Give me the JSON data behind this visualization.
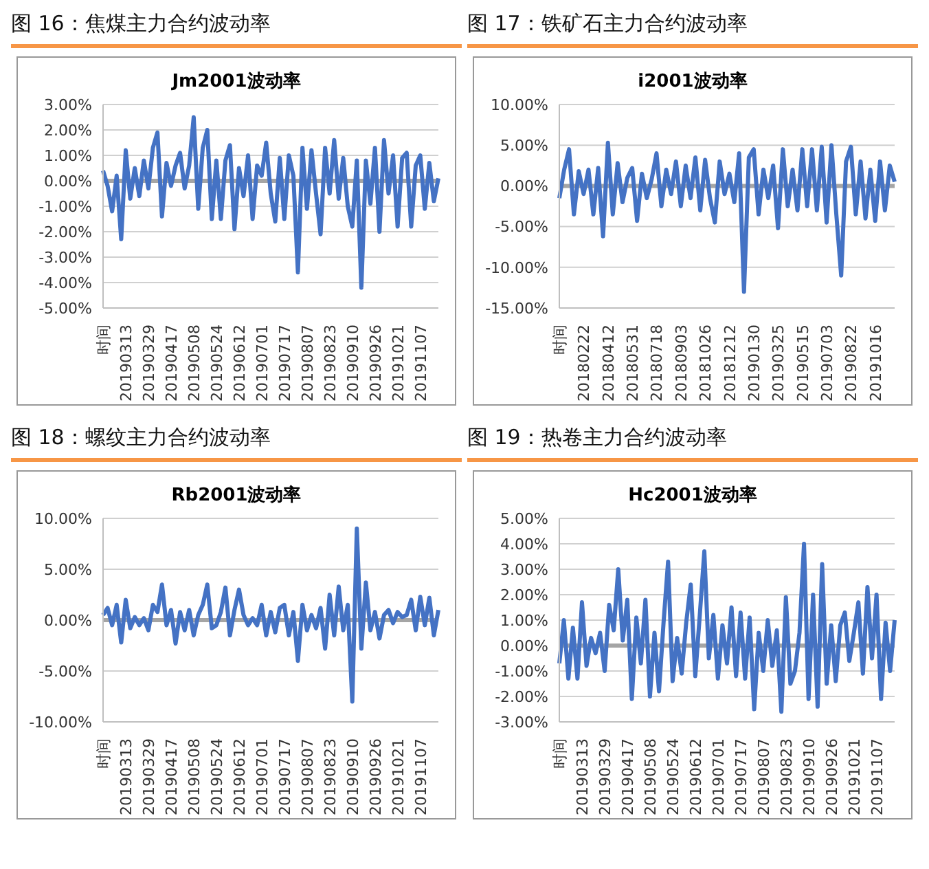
{
  "chart_data": [
    {
      "type": "line",
      "title": "图 16：焦煤主力合约波动率",
      "subtitle": "Jm2001波动率",
      "categories": [
        "时间",
        null,
        null,
        null,
        null,
        "20190313",
        null,
        null,
        null,
        null,
        "20190329",
        null,
        null,
        null,
        null,
        "20190417",
        null,
        null,
        null,
        null,
        "20190508",
        null,
        null,
        null,
        null,
        "20190524",
        null,
        null,
        null,
        null,
        "20190612",
        null,
        null,
        null,
        null,
        "20190701",
        null,
        null,
        null,
        null,
        "20190717",
        null,
        null,
        null,
        null,
        "20190807",
        null,
        null,
        null,
        null,
        "20190823",
        null,
        null,
        null,
        null,
        "20190910",
        null,
        null,
        null,
        null,
        "20190926",
        null,
        null,
        null,
        null,
        "20191021",
        null,
        null,
        null,
        null,
        "20191107",
        null,
        null,
        null,
        null
      ],
      "series": [
        {
          "color": "#4472c4",
          "values": [
            0.4,
            -0.2,
            -1.2,
            0.2,
            -2.3,
            1.2,
            -0.7,
            0.5,
            -0.6,
            0.8,
            -0.3,
            1.3,
            1.9,
            -1.4,
            0.7,
            -0.2,
            0.6,
            1.1,
            -0.3,
            0.6,
            2.5,
            -1.1,
            1.3,
            2.0,
            -1.5,
            0.8,
            -1.5,
            0.8,
            1.4,
            -1.9,
            0.5,
            -0.6,
            1.0,
            -1.5,
            0.6,
            0.2,
            1.5,
            -0.5,
            -1.6,
            0.9,
            -1.5,
            1.0,
            0.2,
            -3.6,
            1.3,
            -1.1,
            1.2,
            -0.5,
            -2.1,
            1.3,
            -0.5,
            1.6,
            -0.7,
            0.9,
            -1.0,
            -1.8,
            0.8,
            -4.2,
            0.8,
            -0.9,
            1.3,
            -2.0,
            1.6,
            -0.5,
            1.0,
            -1.8,
            0.9,
            1.1,
            -1.8,
            0.6,
            1.0,
            -1.1,
            0.7,
            -0.8,
            0.1
          ]
        }
      ],
      "ylim": [
        -5,
        3
      ],
      "yticks": [
        {
          "value": -5,
          "label": "-5.00%"
        },
        {
          "value": -4,
          "label": "-4.00%"
        },
        {
          "value": -3,
          "label": "-3.00%"
        },
        {
          "value": -2,
          "label": "-2.00%"
        },
        {
          "value": -1,
          "label": "-1.00%"
        },
        {
          "value": 0,
          "label": "0.00%"
        },
        {
          "value": 1,
          "label": "1.00%"
        },
        {
          "value": 2,
          "label": "2.00%"
        },
        {
          "value": 3,
          "label": "3.00%"
        }
      ],
      "ref_lines": [
        {
          "axis": "y",
          "value": 0,
          "color": "#a5a5a5"
        }
      ],
      "grid": "y",
      "marker": "none",
      "legend": false
    },
    {
      "type": "line",
      "title": "图 17：铁矿石主力合约波动率",
      "subtitle": "i2001波动率",
      "categories": [
        "时间",
        null,
        null,
        null,
        null,
        "20180222",
        null,
        null,
        null,
        null,
        "20180412",
        null,
        null,
        null,
        null,
        "20180531",
        null,
        null,
        null,
        null,
        "20180718",
        null,
        null,
        null,
        null,
        "20180903",
        null,
        null,
        null,
        null,
        "20181026",
        null,
        null,
        null,
        null,
        "20181212",
        null,
        null,
        null,
        null,
        "20190130",
        null,
        null,
        null,
        null,
        "20190325",
        null,
        null,
        null,
        null,
        "20190515",
        null,
        null,
        null,
        null,
        "20190703",
        null,
        null,
        null,
        null,
        "20190822",
        null,
        null,
        null,
        null,
        "20191016",
        null,
        null,
        null,
        null
      ],
      "series": [
        {
          "color": "#4472c4",
          "values": [
            -1.5,
            2.0,
            4.5,
            -3.5,
            1.8,
            -1.0,
            2.0,
            -3.5,
            2.2,
            -6.2,
            5.3,
            -3.5,
            2.8,
            -2.0,
            1.0,
            2.2,
            -4.3,
            1.5,
            -1.5,
            0.8,
            4.0,
            -2.5,
            2.0,
            -1.0,
            3.0,
            -2.5,
            2.5,
            -1.5,
            3.5,
            -3.0,
            3.2,
            -1.5,
            -4.5,
            3.0,
            -1.0,
            1.5,
            -2.0,
            4.0,
            -13.0,
            3.5,
            4.5,
            -3.5,
            2.0,
            -1.5,
            2.5,
            -5.2,
            4.5,
            -2.5,
            2.0,
            -3.0,
            4.5,
            -2.5,
            4.5,
            -3.0,
            4.8,
            -4.5,
            5.0,
            -3.5,
            -11.0,
            3.0,
            4.8,
            -3.5,
            3.0,
            -4.0,
            2.0,
            -4.3,
            3.0,
            -3.0,
            2.5,
            0.5
          ]
        }
      ],
      "ylim": [
        -15,
        10
      ],
      "yticks": [
        {
          "value": -15,
          "label": "-15.00%"
        },
        {
          "value": -10,
          "label": "-10.00%"
        },
        {
          "value": -5,
          "label": "-5.00%"
        },
        {
          "value": 0,
          "label": "0.00%"
        },
        {
          "value": 5,
          "label": "5.00%"
        },
        {
          "value": 10,
          "label": "10.00%"
        }
      ],
      "ref_lines": [
        {
          "axis": "y",
          "value": 0,
          "color": "#a5a5a5"
        }
      ],
      "grid": "y",
      "marker": "none",
      "legend": false
    },
    {
      "type": "line",
      "title": "图 18：螺纹主力合约波动率",
      "subtitle": "Rb2001波动率",
      "categories": [
        "时间",
        null,
        null,
        null,
        null,
        "20190313",
        null,
        null,
        null,
        null,
        "20190329",
        null,
        null,
        null,
        null,
        "20190417",
        null,
        null,
        null,
        null,
        "20190508",
        null,
        null,
        null,
        null,
        "20190524",
        null,
        null,
        null,
        null,
        "20190612",
        null,
        null,
        null,
        null,
        "20190701",
        null,
        null,
        null,
        null,
        "20190717",
        null,
        null,
        null,
        null,
        "20190807",
        null,
        null,
        null,
        null,
        "20190823",
        null,
        null,
        null,
        null,
        "20190910",
        null,
        null,
        null,
        null,
        "20190926",
        null,
        null,
        null,
        null,
        "20191021",
        null,
        null,
        null,
        null,
        "20191107",
        null,
        null,
        null,
        null
      ],
      "series": [
        {
          "color": "#4472c4",
          "values": [
            0.5,
            1.2,
            -0.5,
            1.5,
            -2.2,
            2.0,
            -0.8,
            0.3,
            -0.5,
            0.2,
            -1.0,
            1.5,
            0.8,
            3.5,
            -0.5,
            1.0,
            -2.3,
            0.8,
            -1.0,
            1.0,
            -1.5,
            0.5,
            1.5,
            3.5,
            -0.8,
            -0.5,
            0.8,
            3.2,
            -1.5,
            1.0,
            3.0,
            0.5,
            -0.5,
            0.2,
            -0.5,
            1.5,
            -1.5,
            0.8,
            -1.2,
            1.2,
            1.5,
            -1.5,
            0.8,
            -4.0,
            1.5,
            -1.0,
            0.5,
            -0.8,
            1.2,
            -2.8,
            2.5,
            -1.5,
            3.3,
            -1.0,
            1.5,
            -8.0,
            9.0,
            -2.8,
            3.7,
            -1.0,
            0.8,
            -1.8,
            0.5,
            1.0,
            -0.3,
            0.8,
            0.3,
            0.5,
            2.0,
            -1.0,
            2.3,
            -0.5,
            2.2,
            -1.5,
            1.0
          ]
        }
      ],
      "ylim": [
        -10,
        10
      ],
      "yticks": [
        {
          "value": -10,
          "label": "-10.00%"
        },
        {
          "value": -5,
          "label": "-5.00%"
        },
        {
          "value": 0,
          "label": "0.00%"
        },
        {
          "value": 5,
          "label": "5.00%"
        },
        {
          "value": 10,
          "label": "10.00%"
        }
      ],
      "ref_lines": [
        {
          "axis": "y",
          "value": 0,
          "color": "#a5a5a5"
        }
      ],
      "grid": "y",
      "marker": "none",
      "legend": false
    },
    {
      "type": "line",
      "title": "图 19：热卷主力合约波动率",
      "subtitle": "Hc2001波动率",
      "categories": [
        "时间",
        null,
        null,
        null,
        null,
        "20190313",
        null,
        null,
        null,
        null,
        "20190329",
        null,
        null,
        null,
        null,
        "20190417",
        null,
        null,
        null,
        null,
        "20190508",
        null,
        null,
        null,
        null,
        "20190524",
        null,
        null,
        null,
        null,
        "20190612",
        null,
        null,
        null,
        null,
        "20190701",
        null,
        null,
        null,
        null,
        "20190717",
        null,
        null,
        null,
        null,
        "20190807",
        null,
        null,
        null,
        null,
        "20190823",
        null,
        null,
        null,
        null,
        "20190910",
        null,
        null,
        null,
        null,
        "20190926",
        null,
        null,
        null,
        null,
        "20191021",
        null,
        null,
        null,
        null,
        "20191107",
        null,
        null,
        null,
        null
      ],
      "series": [
        {
          "color": "#4472c4",
          "values": [
            -0.7,
            1.0,
            -1.3,
            0.7,
            -1.3,
            1.7,
            -0.8,
            0.3,
            -0.3,
            0.5,
            -1.0,
            1.6,
            0.6,
            3.0,
            0.2,
            1.8,
            -2.1,
            1.1,
            -0.7,
            1.8,
            -2.0,
            0.5,
            -1.8,
            0.9,
            3.3,
            -1.4,
            0.3,
            -1.1,
            0.9,
            2.4,
            -1.2,
            1.2,
            3.7,
            -0.5,
            1.2,
            -1.3,
            0.8,
            -0.7,
            1.5,
            -1.2,
            1.3,
            -1.3,
            1.1,
            -2.5,
            0.5,
            -1.0,
            1.0,
            -0.8,
            0.6,
            -2.6,
            1.9,
            -1.5,
            -1.0,
            0.5,
            4.0,
            -2.1,
            2.0,
            -2.4,
            3.2,
            -1.5,
            0.8,
            -1.4,
            0.8,
            1.3,
            -0.6,
            0.5,
            1.7,
            -1.1,
            2.3,
            -0.5,
            2.0,
            -2.1,
            0.9,
            -1.0,
            1.0
          ]
        }
      ],
      "ylim": [
        -3,
        5
      ],
      "yticks": [
        {
          "value": -3,
          "label": "-3.00%"
        },
        {
          "value": -2,
          "label": "-2.00%"
        },
        {
          "value": -1,
          "label": "-1.00%"
        },
        {
          "value": 0,
          "label": "0.00%"
        },
        {
          "value": 1,
          "label": "1.00%"
        },
        {
          "value": 2,
          "label": "2.00%"
        },
        {
          "value": 3,
          "label": "3.00%"
        },
        {
          "value": 4,
          "label": "4.00%"
        },
        {
          "value": 5,
          "label": "5.00%"
        }
      ],
      "ref_lines": [
        {
          "axis": "y",
          "value": 0,
          "color": "#a5a5a5"
        }
      ],
      "grid": "y",
      "marker": "none",
      "legend": false
    }
  ]
}
